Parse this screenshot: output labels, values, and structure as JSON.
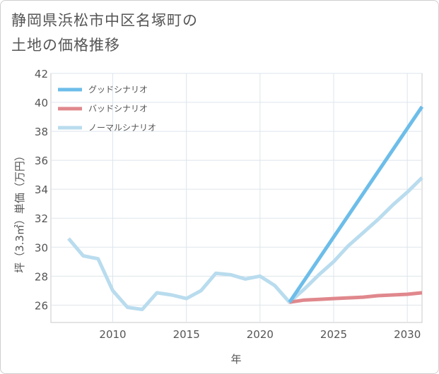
{
  "chart_data": {
    "type": "line",
    "title_lines": [
      "静岡県浜松市中区名塚町の",
      "土地の価格推移"
    ],
    "xlabel": "年",
    "ylabel": "坪（3.3㎡）単価（万円）",
    "xlim": [
      2005.8,
      2031
    ],
    "ylim": [
      24.8,
      42
    ],
    "xticks": [
      2010,
      2015,
      2020,
      2025,
      2030
    ],
    "yticks": [
      26,
      28,
      30,
      32,
      34,
      36,
      38,
      40,
      42
    ],
    "grid": true,
    "legend_position": "top-left",
    "series": [
      {
        "name": "グッドシナリオ",
        "color": "#6dbde9",
        "x": [
          2022,
          2031
        ],
        "y": [
          26.2,
          39.7
        ]
      },
      {
        "name": "バッドシナリオ",
        "color": "#e0888d",
        "x": [
          2022,
          2023,
          2024,
          2025,
          2026,
          2027,
          2028,
          2029,
          2030,
          2031
        ],
        "y": [
          26.2,
          26.35,
          26.4,
          26.45,
          26.5,
          26.55,
          26.65,
          26.7,
          26.75,
          26.85
        ]
      },
      {
        "name": "ノーマルシナリオ",
        "color": "#b9dcee",
        "x": [
          2007,
          2008,
          2009,
          2010,
          2011,
          2012,
          2013,
          2014,
          2015,
          2016,
          2017,
          2018,
          2019,
          2020,
          2021,
          2022,
          2023,
          2024,
          2025,
          2026,
          2027,
          2028,
          2029,
          2030,
          2031
        ],
        "y": [
          30.6,
          29.4,
          29.2,
          27.0,
          25.85,
          25.7,
          26.85,
          26.7,
          26.45,
          27.0,
          28.2,
          28.1,
          27.8,
          28.0,
          27.35,
          26.2,
          27.1,
          28.1,
          29.0,
          30.1,
          31.0,
          31.9,
          32.9,
          33.8,
          34.8
        ]
      }
    ]
  }
}
